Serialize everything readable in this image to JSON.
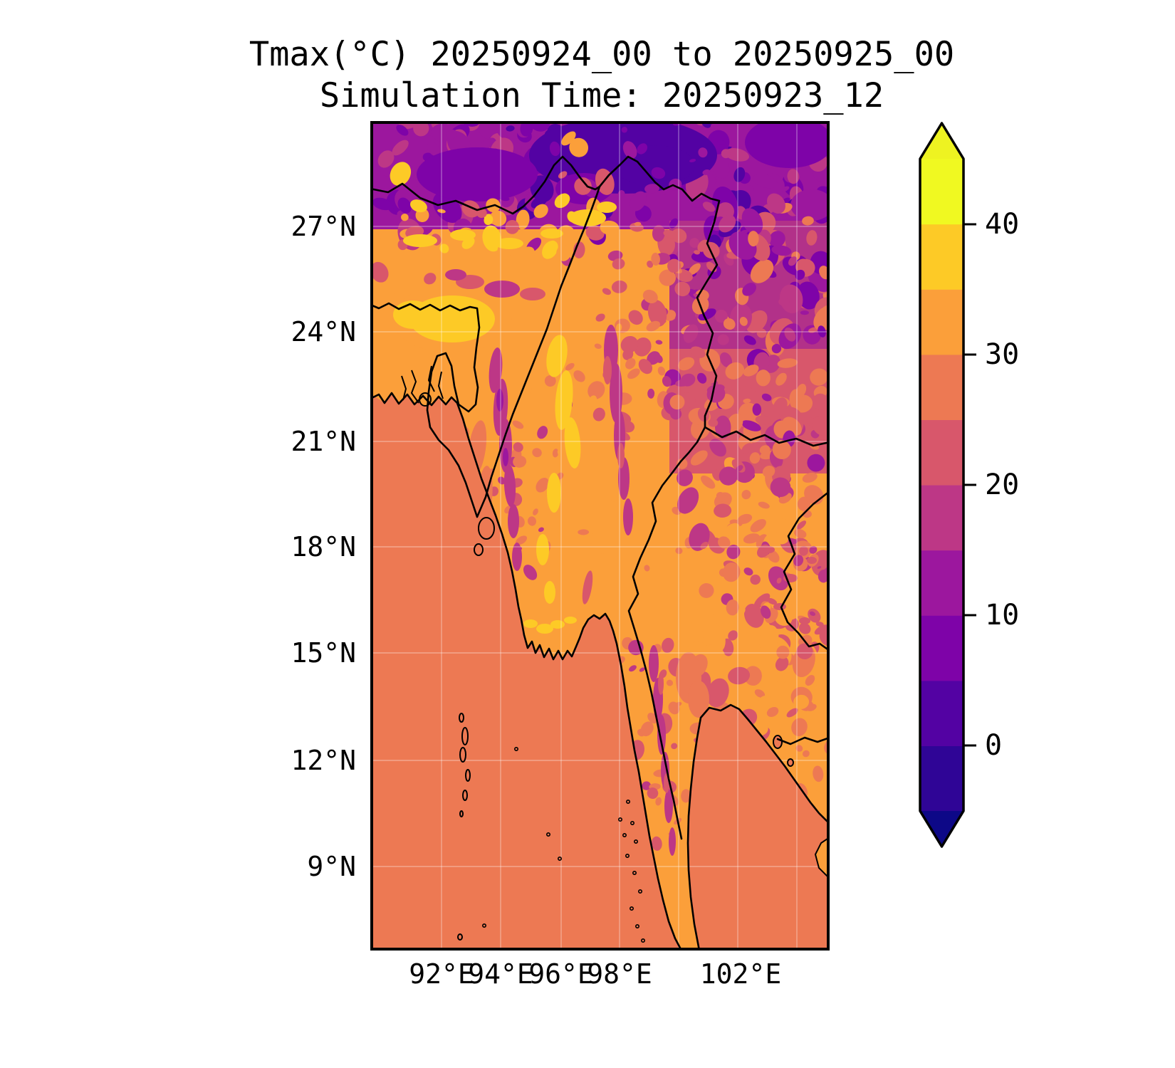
{
  "title": {
    "line1": "Tmax(°C) 20250924_00 to 20250925_00",
    "line2": "Simulation Time: 20250923_12"
  },
  "axes": {
    "lat_ticks": [
      "27°N",
      "24°N",
      "21°N",
      "18°N",
      "15°N",
      "12°N",
      "9°N"
    ],
    "lon_ticks": [
      "92°E",
      "94°E",
      "96°E",
      "98°E",
      "102°E"
    ]
  },
  "colorbar": {
    "tick_labels": [
      "40",
      "30",
      "20",
      "10",
      "0"
    ],
    "levels_c": [
      -5,
      0,
      5,
      10,
      15,
      20,
      25,
      30,
      35,
      40,
      45
    ],
    "band_colors": [
      "#2f0596",
      "#5302a3",
      "#7e03a8",
      "#9c179e",
      "#bd3786",
      "#d8576b",
      "#ed7953",
      "#fb9f3a",
      "#fdca26",
      "#f0f921"
    ],
    "under_color": "#0d0887",
    "over_color": "#eef321",
    "extend": "both"
  },
  "map_colors": {
    "sea": "#ed7953",
    "land_warm": "#fb9f3a",
    "hot_patch": "#fdca26",
    "coastline": "#000000",
    "grid": "#ffffff"
  },
  "chart_data": {
    "type": "heatmap",
    "variable": "Tmax",
    "units": "°C",
    "title": "Tmax(°C) 20250924_00 to 20250925_00",
    "subtitle": "Simulation Time: 20250923_12",
    "valid_period": {
      "start": "20250924_00",
      "end": "20250925_00"
    },
    "simulation_time": "20250923_12",
    "colormap": "plasma (discrete, 5°C bands, extend both)",
    "levels_c": [
      -5,
      0,
      5,
      10,
      15,
      20,
      25,
      30,
      35,
      40,
      45
    ],
    "colorbar_ticks": [
      40,
      30,
      20,
      10,
      0
    ],
    "x": {
      "tick_labels": [
        "92°E",
        "94°E",
        "96°E",
        "98°E",
        "102°E"
      ],
      "tick_lon": [
        92,
        94,
        96,
        98,
        102
      ],
      "range_lon": [
        89.6,
        105.0
      ]
    },
    "y": {
      "tick_labels": [
        "27°N",
        "24°N",
        "21°N",
        "18°N",
        "15°N",
        "12°N",
        "9°N"
      ],
      "tick_lat": [
        27,
        24,
        21,
        18,
        15,
        12,
        9
      ],
      "range_lat": [
        6.9,
        29.8
      ]
    },
    "grid": true,
    "legend_position": "right colorbar",
    "features": [
      {
        "region": "Bay of Bengal / Andaman Sea (uniform field)",
        "tmax_c": "25-30"
      },
      {
        "region": "Himalayan rim along top edge",
        "tmax_c": "-5-10"
      },
      {
        "region": "Yunnan / NE highlands (upper right, mottled)",
        "tmax_c": "10-20"
      },
      {
        "region": "Central Myanmar Irrawaddy valley",
        "tmax_c": "30-35"
      },
      {
        "region": "Bangladesh plains / Sylhet hot patch",
        "tmax_c": "35-40"
      },
      {
        "region": "Chin, Rakhine, Shan and peninsula hill ridges",
        "tmax_c": "20-30"
      },
      {
        "region": "Thailand interior (lower right)",
        "tmax_c": "30-35"
      }
    ]
  }
}
